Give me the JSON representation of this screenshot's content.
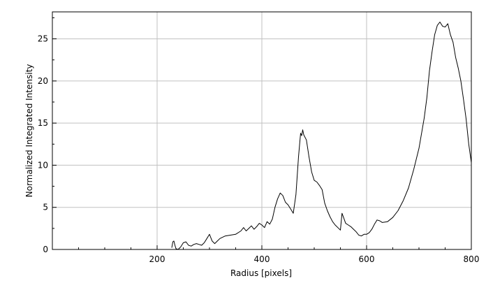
{
  "chart_data": {
    "type": "line",
    "title": "",
    "xlabel": "Radius [pixels]",
    "ylabel": "Normalized Integrated Intensity",
    "xlim": [
      0,
      800
    ],
    "ylim": [
      0,
      28.2
    ],
    "xticks": [
      200,
      400,
      600,
      800
    ],
    "yticks": [
      0,
      5,
      10,
      15,
      20,
      25
    ],
    "grid": true,
    "line_color": "#000000",
    "grid_color": "#c0c0c0",
    "series": [
      {
        "x": [
          228,
          230,
          232,
          234,
          236,
          240,
          245,
          250,
          255,
          260,
          265,
          270,
          275,
          280,
          285,
          290,
          295,
          300,
          305,
          310,
          315,
          320,
          330,
          340,
          350,
          360,
          365,
          370,
          375,
          380,
          385,
          390,
          395,
          400,
          405,
          410,
          415,
          420,
          425,
          430,
          435,
          440,
          445,
          450,
          455,
          460,
          465,
          470,
          474,
          476,
          478,
          480,
          485,
          490,
          495,
          500,
          505,
          510,
          515,
          520,
          525,
          530,
          535,
          540,
          545,
          550,
          553,
          556,
          560,
          565,
          570,
          575,
          580,
          585,
          590,
          595,
          600,
          605,
          610,
          615,
          620,
          625,
          630,
          640,
          650,
          660,
          670,
          680,
          690,
          700,
          710,
          715,
          720,
          725,
          730,
          735,
          740,
          745,
          750,
          755,
          760,
          765,
          770,
          775,
          780,
          785,
          790,
          795,
          800
        ],
        "y": [
          0.2,
          0.9,
          1.0,
          0.5,
          0.1,
          0.0,
          0.3,
          0.8,
          0.9,
          0.5,
          0.4,
          0.6,
          0.7,
          0.6,
          0.5,
          0.8,
          1.3,
          1.8,
          1.0,
          0.7,
          1.0,
          1.3,
          1.6,
          1.7,
          1.8,
          2.2,
          2.6,
          2.2,
          2.5,
          2.8,
          2.4,
          2.7,
          3.1,
          2.9,
          2.6,
          3.3,
          3.0,
          3.6,
          5.0,
          6.0,
          6.7,
          6.4,
          5.6,
          5.3,
          4.8,
          4.3,
          6.5,
          11.0,
          13.8,
          13.5,
          14.2,
          13.6,
          13.0,
          11.0,
          9.2,
          8.2,
          8.0,
          7.6,
          7.1,
          5.5,
          4.6,
          3.9,
          3.3,
          2.9,
          2.6,
          2.3,
          4.3,
          3.8,
          3.1,
          2.9,
          2.7,
          2.4,
          2.1,
          1.7,
          1.6,
          1.8,
          1.8,
          2.0,
          2.4,
          3.0,
          3.5,
          3.4,
          3.2,
          3.3,
          3.8,
          4.6,
          5.8,
          7.3,
          9.5,
          12.0,
          15.6,
          18.0,
          21.2,
          23.5,
          25.5,
          26.6,
          27.0,
          26.5,
          26.4,
          26.8,
          25.5,
          24.6,
          22.8,
          21.5,
          20.0,
          17.8,
          15.5,
          12.5,
          10.3
        ]
      }
    ]
  }
}
